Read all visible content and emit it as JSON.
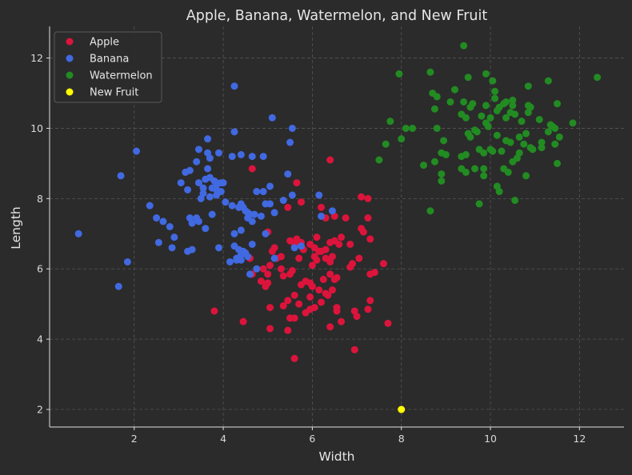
{
  "chart_data": {
    "type": "scatter",
    "title": "Apple, Banana, Watermelon, and New Fruit",
    "xlabel": "Width",
    "ylabel": "Length",
    "xlim": [
      0.1,
      13.0
    ],
    "ylim": [
      1.5,
      12.9
    ],
    "x_ticks": [
      2,
      4,
      6,
      8,
      10,
      12
    ],
    "y_ticks": [
      2,
      4,
      6,
      8,
      10,
      12
    ],
    "grid": true,
    "legend_position": "top-left",
    "colors": {
      "background": "#2b2b2b",
      "axis": "#e0e0e0",
      "grid": "#555555"
    },
    "series": [
      {
        "name": "Apple",
        "color": "#dc143c",
        "points": [
          [
            3.8,
            4.8
          ],
          [
            4.45,
            4.5
          ],
          [
            4.65,
            8.85
          ],
          [
            5.45,
            7.75
          ],
          [
            5.65,
            8.45
          ],
          [
            5.75,
            7.9
          ],
          [
            6.4,
            9.1
          ],
          [
            6.2,
            7.75
          ],
          [
            6.3,
            7.45
          ],
          [
            6.5,
            7.5
          ],
          [
            6.75,
            7.45
          ],
          [
            7.1,
            8.05
          ],
          [
            7.25,
            8.0
          ],
          [
            7.25,
            7.45
          ],
          [
            7.1,
            7.15
          ],
          [
            7.15,
            7.05
          ],
          [
            7.3,
            6.85
          ],
          [
            7.05,
            6.3
          ],
          [
            6.85,
            6.05
          ],
          [
            7.6,
            6.15
          ],
          [
            7.4,
            5.9
          ],
          [
            7.3,
            5.85
          ],
          [
            7.3,
            5.1
          ],
          [
            7.25,
            4.85
          ],
          [
            7.7,
            4.45
          ],
          [
            6.95,
            4.8
          ],
          [
            7.0,
            4.65
          ],
          [
            6.55,
            4.8
          ],
          [
            6.65,
            4.5
          ],
          [
            6.4,
            4.35
          ],
          [
            6.95,
            3.7
          ],
          [
            5.6,
            3.45
          ],
          [
            5.45,
            4.25
          ],
          [
            5.5,
            4.6
          ],
          [
            5.6,
            4.6
          ],
          [
            5.05,
            4.3
          ],
          [
            5.05,
            4.9
          ],
          [
            5.35,
            4.95
          ],
          [
            5.45,
            5.1
          ],
          [
            5.7,
            5.0
          ],
          [
            5.95,
            5.2
          ],
          [
            6.05,
            4.9
          ],
          [
            6.2,
            5.05
          ],
          [
            6.35,
            5.25
          ],
          [
            6.45,
            5.4
          ],
          [
            6.55,
            4.9
          ],
          [
            6.5,
            5.7
          ],
          [
            6.25,
            5.7
          ],
          [
            6.4,
            5.85
          ],
          [
            6.55,
            5.75
          ],
          [
            6.4,
            6.2
          ],
          [
            6.6,
            6.7
          ],
          [
            6.65,
            6.9
          ],
          [
            6.5,
            6.8
          ],
          [
            6.45,
            6.35
          ],
          [
            6.3,
            6.3
          ],
          [
            6.15,
            6.5
          ],
          [
            6.1,
            6.9
          ],
          [
            6.05,
            6.6
          ],
          [
            5.95,
            6.7
          ],
          [
            5.8,
            6.55
          ],
          [
            5.75,
            6.75
          ],
          [
            5.65,
            6.85
          ],
          [
            5.5,
            6.8
          ],
          [
            5.6,
            6.7
          ],
          [
            5.7,
            6.3
          ],
          [
            5.55,
            5.95
          ],
          [
            5.5,
            5.85
          ],
          [
            5.3,
            6.0
          ],
          [
            5.35,
            5.8
          ],
          [
            5.0,
            5.85
          ],
          [
            4.95,
            5.5
          ],
          [
            5.0,
            5.6
          ],
          [
            4.85,
            5.65
          ],
          [
            4.65,
            5.85
          ],
          [
            4.6,
            6.3
          ],
          [
            4.9,
            6.0
          ],
          [
            5.05,
            6.1
          ],
          [
            5.1,
            6.5
          ],
          [
            5.15,
            6.6
          ],
          [
            5.2,
            6.3
          ],
          [
            5.0,
            7.05
          ],
          [
            5.3,
            6.35
          ],
          [
            5.75,
            5.55
          ],
          [
            5.85,
            5.65
          ],
          [
            5.95,
            5.6
          ],
          [
            6.0,
            6.1
          ],
          [
            6.1,
            6.25
          ],
          [
            6.2,
            6.5
          ],
          [
            6.05,
            6.35
          ],
          [
            6.3,
            6.55
          ],
          [
            6.4,
            6.75
          ],
          [
            6.85,
            6.7
          ],
          [
            6.9,
            6.15
          ],
          [
            5.6,
            5.25
          ],
          [
            5.85,
            4.75
          ],
          [
            6.0,
            5.5
          ],
          [
            6.15,
            5.4
          ],
          [
            6.3,
            5.3
          ],
          [
            5.95,
            4.85
          ]
        ]
      },
      {
        "name": "Banana",
        "color": "#4169e1",
        "points": [
          [
            0.75,
            7.0
          ],
          [
            1.65,
            5.5
          ],
          [
            1.7,
            8.65
          ],
          [
            1.85,
            6.2
          ],
          [
            2.05,
            9.35
          ],
          [
            2.35,
            7.8
          ],
          [
            2.5,
            7.45
          ],
          [
            2.55,
            6.75
          ],
          [
            2.65,
            7.35
          ],
          [
            2.8,
            7.2
          ],
          [
            2.85,
            6.6
          ],
          [
            2.9,
            6.9
          ],
          [
            3.05,
            8.45
          ],
          [
            3.15,
            8.75
          ],
          [
            3.2,
            8.25
          ],
          [
            3.2,
            6.5
          ],
          [
            3.25,
            8.8
          ],
          [
            3.3,
            7.3
          ],
          [
            3.3,
            6.55
          ],
          [
            3.4,
            7.45
          ],
          [
            3.45,
            7.35
          ],
          [
            3.4,
            9.05
          ],
          [
            3.45,
            9.4
          ],
          [
            3.45,
            8.45
          ],
          [
            3.5,
            8.0
          ],
          [
            3.55,
            8.3
          ],
          [
            3.55,
            8.15
          ],
          [
            3.6,
            8.55
          ],
          [
            3.6,
            7.15
          ],
          [
            3.65,
            9.3
          ],
          [
            3.65,
            9.7
          ],
          [
            3.7,
            8.05
          ],
          [
            3.7,
            8.6
          ],
          [
            3.7,
            9.15
          ],
          [
            3.75,
            8.3
          ],
          [
            3.75,
            7.55
          ],
          [
            3.8,
            8.5
          ],
          [
            3.85,
            8.1
          ],
          [
            3.85,
            8.25
          ],
          [
            3.85,
            8.45
          ],
          [
            3.9,
            9.3
          ],
          [
            3.95,
            8.2
          ],
          [
            3.95,
            8.45
          ],
          [
            3.9,
            6.6
          ],
          [
            4.05,
            7.9
          ],
          [
            4.15,
            6.2
          ],
          [
            4.2,
            7.8
          ],
          [
            4.25,
            7.0
          ],
          [
            4.25,
            6.65
          ],
          [
            4.3,
            6.3
          ],
          [
            4.3,
            6.25
          ],
          [
            4.35,
            6.55
          ],
          [
            4.4,
            6.4
          ],
          [
            4.4,
            6.25
          ],
          [
            4.45,
            6.5
          ],
          [
            4.5,
            6.45
          ],
          [
            4.55,
            6.35
          ],
          [
            4.6,
            5.85
          ],
          [
            4.65,
            6.7
          ],
          [
            4.75,
            6.0
          ],
          [
            4.4,
            7.85
          ],
          [
            4.4,
            9.25
          ],
          [
            4.45,
            7.75
          ],
          [
            4.5,
            7.65
          ],
          [
            4.55,
            7.6
          ],
          [
            4.6,
            7.55
          ],
          [
            4.65,
            7.35
          ],
          [
            4.7,
            7.55
          ],
          [
            4.65,
            9.2
          ],
          [
            4.75,
            8.2
          ],
          [
            4.85,
            7.5
          ],
          [
            4.9,
            9.2
          ],
          [
            4.9,
            8.2
          ],
          [
            4.95,
            7.85
          ],
          [
            4.95,
            7.0
          ],
          [
            5.05,
            8.35
          ],
          [
            5.05,
            7.85
          ],
          [
            5.1,
            10.3
          ],
          [
            5.15,
            7.6
          ],
          [
            5.15,
            6.3
          ],
          [
            5.35,
            7.95
          ],
          [
            5.45,
            8.7
          ],
          [
            5.5,
            9.6
          ],
          [
            5.55,
            10.0
          ],
          [
            5.6,
            6.6
          ],
          [
            5.75,
            6.65
          ],
          [
            5.55,
            8.1
          ],
          [
            6.15,
            8.1
          ],
          [
            6.2,
            7.5
          ],
          [
            6.45,
            7.65
          ],
          [
            4.25,
            9.9
          ],
          [
            4.25,
            11.2
          ],
          [
            4.2,
            9.2
          ],
          [
            4.4,
            7.1
          ],
          [
            4.55,
            7.45
          ],
          [
            4.0,
            8.45
          ],
          [
            3.85,
            8.4
          ],
          [
            3.25,
            7.45
          ],
          [
            3.65,
            8.85
          ],
          [
            4.35,
            7.75
          ]
        ]
      },
      {
        "name": "Watermelon",
        "color": "#228b22",
        "points": [
          [
            7.5,
            9.1
          ],
          [
            7.65,
            9.55
          ],
          [
            7.75,
            10.2
          ],
          [
            7.95,
            11.55
          ],
          [
            8.0,
            9.7
          ],
          [
            8.1,
            10.0
          ],
          [
            8.25,
            10.0
          ],
          [
            8.5,
            8.95
          ],
          [
            8.65,
            7.65
          ],
          [
            8.65,
            11.6
          ],
          [
            8.7,
            11.0
          ],
          [
            8.75,
            10.55
          ],
          [
            8.8,
            10.9
          ],
          [
            8.8,
            10.0
          ],
          [
            8.75,
            9.05
          ],
          [
            8.9,
            9.3
          ],
          [
            8.9,
            8.7
          ],
          [
            8.9,
            8.5
          ],
          [
            8.95,
            9.65
          ],
          [
            9.0,
            9.25
          ],
          [
            9.1,
            10.75
          ],
          [
            9.2,
            11.1
          ],
          [
            9.35,
            10.4
          ],
          [
            9.35,
            9.2
          ],
          [
            9.35,
            8.85
          ],
          [
            9.4,
            12.35
          ],
          [
            9.4,
            10.75
          ],
          [
            9.45,
            10.3
          ],
          [
            9.45,
            9.25
          ],
          [
            9.45,
            8.75
          ],
          [
            9.5,
            11.45
          ],
          [
            9.5,
            9.85
          ],
          [
            9.55,
            9.75
          ],
          [
            9.55,
            10.6
          ],
          [
            9.6,
            10.7
          ],
          [
            9.65,
            9.95
          ],
          [
            9.65,
            8.85
          ],
          [
            9.7,
            9.9
          ],
          [
            9.75,
            9.4
          ],
          [
            9.75,
            7.85
          ],
          [
            9.8,
            10.35
          ],
          [
            9.85,
            9.3
          ],
          [
            9.85,
            8.85
          ],
          [
            9.85,
            8.65
          ],
          [
            9.9,
            10.15
          ],
          [
            9.9,
            11.55
          ],
          [
            9.9,
            10.65
          ],
          [
            9.95,
            10.05
          ],
          [
            10.0,
            10.3
          ],
          [
            10.0,
            9.4
          ],
          [
            10.05,
            9.35
          ],
          [
            10.05,
            11.35
          ],
          [
            10.1,
            11.05
          ],
          [
            10.1,
            10.85
          ],
          [
            10.15,
            10.5
          ],
          [
            10.15,
            9.8
          ],
          [
            10.15,
            8.35
          ],
          [
            10.2,
            8.2
          ],
          [
            10.2,
            10.6
          ],
          [
            10.25,
            9.35
          ],
          [
            10.3,
            8.85
          ],
          [
            10.35,
            10.3
          ],
          [
            10.35,
            10.75
          ],
          [
            10.35,
            9.65
          ],
          [
            10.4,
            8.75
          ],
          [
            10.45,
            10.45
          ],
          [
            10.45,
            9.6
          ],
          [
            10.5,
            10.65
          ],
          [
            10.5,
            10.8
          ],
          [
            10.5,
            9.05
          ],
          [
            10.55,
            10.4
          ],
          [
            10.55,
            7.95
          ],
          [
            10.6,
            9.15
          ],
          [
            10.65,
            9.75
          ],
          [
            10.65,
            9.3
          ],
          [
            10.7,
            10.2
          ],
          [
            10.75,
            9.55
          ],
          [
            10.8,
            8.65
          ],
          [
            10.8,
            9.85
          ],
          [
            10.85,
            11.2
          ],
          [
            10.85,
            10.45
          ],
          [
            10.85,
            10.65
          ],
          [
            10.9,
            10.6
          ],
          [
            10.9,
            9.45
          ],
          [
            11.1,
            10.25
          ],
          [
            11.15,
            9.6
          ],
          [
            11.15,
            9.45
          ],
          [
            11.3,
            11.35
          ],
          [
            11.3,
            9.9
          ],
          [
            11.35,
            10.1
          ],
          [
            11.4,
            10.05
          ],
          [
            11.45,
            10.0
          ],
          [
            11.45,
            9.55
          ],
          [
            11.5,
            10.7
          ],
          [
            11.5,
            9.0
          ],
          [
            11.55,
            9.75
          ],
          [
            11.85,
            10.15
          ],
          [
            12.4,
            11.45
          ],
          [
            10.95,
            9.4
          ],
          [
            10.3,
            10.7
          ]
        ]
      },
      {
        "name": "New Fruit",
        "color": "#ffff00",
        "points": [
          [
            8.0,
            2.0
          ]
        ]
      }
    ]
  }
}
